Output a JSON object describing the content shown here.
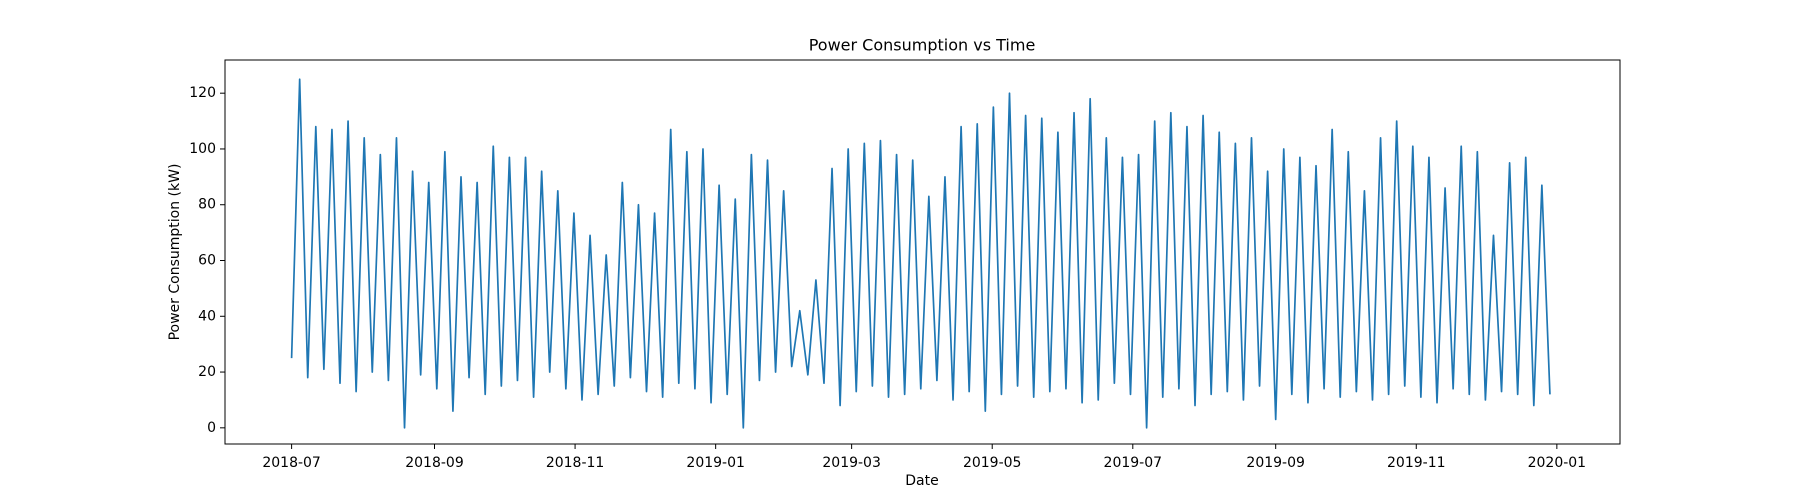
{
  "chart_data": {
    "type": "line",
    "title": "Power Consumption vs Time",
    "xlabel": "Date",
    "ylabel": "Power Consumption (kW)",
    "color": "#1f77b4",
    "x": [
      0,
      3.5,
      7,
      10.5,
      14,
      17.5,
      21,
      24.5,
      28,
      31.5,
      35,
      38.5,
      42,
      45.5,
      49,
      52.5,
      56,
      59.5,
      63,
      66.5,
      70,
      73.5,
      77,
      80.5,
      84,
      87.5,
      91,
      94.5,
      98,
      101.5,
      105,
      108.5,
      112,
      115.5,
      119,
      122.5,
      126,
      129.5,
      133,
      136.5,
      140,
      143.5,
      147,
      150.5,
      154,
      157.5,
      161,
      164.5,
      168,
      171.5,
      175,
      178.5,
      182,
      185.5,
      189,
      192.5,
      196,
      199.5,
      203,
      206.5,
      210,
      213.5,
      217,
      220.5,
      224,
      227.5,
      231,
      234.5,
      238,
      241.5,
      245,
      248.5,
      252,
      255.5,
      259,
      262.5,
      266,
      269.5,
      273,
      276.5,
      280,
      283.5,
      287,
      290.5,
      294,
      297.5,
      301,
      304.5,
      308,
      311.5,
      315,
      318.5,
      322,
      325.5,
      329,
      332.5,
      336,
      339.5,
      343,
      346.5,
      350,
      353.5,
      357,
      360.5,
      364,
      367.5,
      371,
      374.5,
      378,
      381.5,
      385,
      388.5,
      392,
      395.5,
      399,
      402.5,
      406,
      409.5,
      413,
      416.5,
      420,
      423.5,
      427,
      430.5,
      434,
      437.5,
      441,
      444.5,
      448,
      451.5,
      455,
      458.5,
      462,
      465.5,
      469,
      472.5,
      476,
      479.5,
      483,
      486.5,
      490,
      493.5,
      497,
      500.5,
      504,
      507.5,
      511,
      514.5,
      518,
      521.5,
      525,
      528.5,
      532,
      535.5,
      539,
      542.5,
      546
    ],
    "values": [
      25,
      125,
      18,
      108,
      21,
      107,
      16,
      110,
      13,
      104,
      20,
      98,
      17,
      104,
      0,
      92,
      19,
      88,
      14,
      99,
      6,
      90,
      18,
      88,
      12,
      101,
      15,
      97,
      17,
      97,
      11,
      92,
      20,
      85,
      14,
      77,
      10,
      69,
      12,
      62,
      15,
      88,
      18,
      80,
      13,
      77,
      11,
      107,
      16,
      99,
      14,
      100,
      9,
      87,
      12,
      82,
      0,
      98,
      17,
      96,
      20,
      85,
      22,
      42,
      19,
      53,
      16,
      93,
      8,
      100,
      13,
      102,
      15,
      103,
      11,
      98,
      12,
      96,
      14,
      83,
      17,
      90,
      10,
      108,
      13,
      109,
      6,
      115,
      12,
      120,
      15,
      112,
      11,
      111,
      13,
      106,
      14,
      113,
      9,
      118,
      10,
      104,
      16,
      97,
      12,
      98,
      0,
      110,
      11,
      113,
      14,
      108,
      8,
      112,
      12,
      106,
      13,
      102,
      10,
      104,
      15,
      92,
      3,
      100,
      12,
      97,
      9,
      94,
      14,
      107,
      11,
      99,
      13,
      85,
      10,
      104,
      12,
      110,
      15,
      101,
      11,
      97,
      9,
      86,
      14,
      101,
      12,
      99,
      10,
      69,
      13,
      95,
      12,
      97,
      8,
      87,
      12
    ],
    "xlim": [
      -28.9,
      576.4
    ],
    "xticks": [
      {
        "value": 0,
        "label": "2018-07"
      },
      {
        "value": 62,
        "label": "2018-09"
      },
      {
        "value": 123,
        "label": "2018-11"
      },
      {
        "value": 184,
        "label": "2019-01"
      },
      {
        "value": 243,
        "label": "2019-03"
      },
      {
        "value": 304,
        "label": "2019-05"
      },
      {
        "value": 365,
        "label": "2019-07"
      },
      {
        "value": 427,
        "label": "2019-09"
      },
      {
        "value": 488,
        "label": "2019-11"
      },
      {
        "value": 549,
        "label": "2020-01"
      }
    ],
    "ylim": [
      -5.8,
      131.9
    ],
    "yticks": [
      0,
      20,
      40,
      60,
      80,
      100,
      120
    ]
  }
}
